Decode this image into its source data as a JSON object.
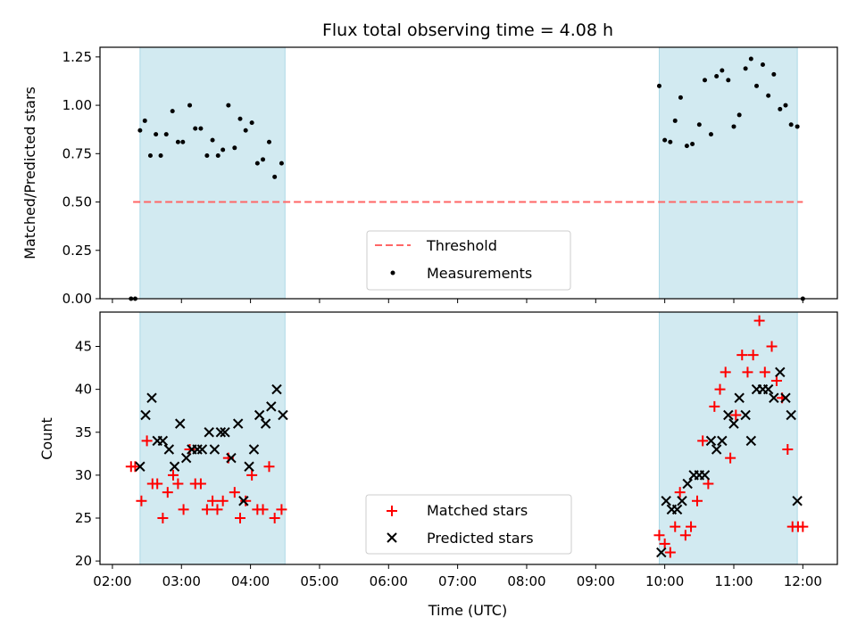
{
  "chart_data": {
    "type": "scatter",
    "title": "Flux total observing time = 4.08 h",
    "xlabel": "Time (UTC)",
    "x_ticks": [
      "02:00",
      "03:00",
      "04:00",
      "05:00",
      "06:00",
      "07:00",
      "08:00",
      "09:00",
      "10:00",
      "11:00",
      "12:00"
    ],
    "xlim_hours": [
      1.82,
      12.5
    ],
    "shaded_intervals_hours": [
      [
        2.4,
        4.5
      ],
      [
        9.92,
        11.92
      ]
    ],
    "shade_color": "#add8e6",
    "top_panel": {
      "ylabel": "Matched/Predicted stars",
      "ylim": [
        0,
        1.3
      ],
      "y_ticks": [
        "0.00",
        "0.25",
        "0.50",
        "0.75",
        "1.00",
        "1.25"
      ],
      "threshold": {
        "name": "Threshold",
        "value": 0.5,
        "x_range_hours": [
          2.3,
          12.0
        ],
        "color": "#ff6666"
      },
      "measurements": {
        "name": "Measurements",
        "color": "#000000",
        "points": [
          [
            2.27,
            0.0
          ],
          [
            2.33,
            0.0
          ],
          [
            2.4,
            0.87
          ],
          [
            2.47,
            0.92
          ],
          [
            2.55,
            0.74
          ],
          [
            2.63,
            0.85
          ],
          [
            2.7,
            0.74
          ],
          [
            2.78,
            0.85
          ],
          [
            2.87,
            0.97
          ],
          [
            2.95,
            0.81
          ],
          [
            3.02,
            0.81
          ],
          [
            3.12,
            1.0
          ],
          [
            3.2,
            0.88
          ],
          [
            3.28,
            0.88
          ],
          [
            3.37,
            0.74
          ],
          [
            3.45,
            0.82
          ],
          [
            3.53,
            0.74
          ],
          [
            3.6,
            0.77
          ],
          [
            3.68,
            1.0
          ],
          [
            3.77,
            0.78
          ],
          [
            3.85,
            0.93
          ],
          [
            3.93,
            0.87
          ],
          [
            4.02,
            0.91
          ],
          [
            4.1,
            0.7
          ],
          [
            4.18,
            0.72
          ],
          [
            4.27,
            0.81
          ],
          [
            4.35,
            0.63
          ],
          [
            4.45,
            0.7
          ],
          [
            9.92,
            1.1
          ],
          [
            10.0,
            0.82
          ],
          [
            10.08,
            0.81
          ],
          [
            10.15,
            0.92
          ],
          [
            10.23,
            1.04
          ],
          [
            10.32,
            0.79
          ],
          [
            10.4,
            0.8
          ],
          [
            10.5,
            0.9
          ],
          [
            10.58,
            1.13
          ],
          [
            10.67,
            0.85
          ],
          [
            10.75,
            1.15
          ],
          [
            10.83,
            1.18
          ],
          [
            10.92,
            1.13
          ],
          [
            11.0,
            0.89
          ],
          [
            11.08,
            0.95
          ],
          [
            11.17,
            1.19
          ],
          [
            11.25,
            1.24
          ],
          [
            11.33,
            1.1
          ],
          [
            11.42,
            1.21
          ],
          [
            11.5,
            1.05
          ],
          [
            11.58,
            1.16
          ],
          [
            11.67,
            0.98
          ],
          [
            11.75,
            1.0
          ],
          [
            11.83,
            0.9
          ],
          [
            11.92,
            0.89
          ],
          [
            12.0,
            0.0
          ]
        ]
      }
    },
    "bottom_panel": {
      "ylabel": "Count",
      "ylim": [
        19.6,
        49
      ],
      "y_ticks": [
        "20",
        "25",
        "30",
        "35",
        "40",
        "45"
      ],
      "series": [
        {
          "name": "Matched stars",
          "marker": "+",
          "color": "#ff0000",
          "points": [
            [
              2.27,
              31
            ],
            [
              2.33,
              31
            ],
            [
              2.42,
              27
            ],
            [
              2.5,
              34
            ],
            [
              2.58,
              29
            ],
            [
              2.65,
              29
            ],
            [
              2.73,
              25
            ],
            [
              2.8,
              28
            ],
            [
              2.88,
              30
            ],
            [
              2.95,
              29
            ],
            [
              3.03,
              26
            ],
            [
              3.12,
              33
            ],
            [
              3.2,
              29
            ],
            [
              3.28,
              29
            ],
            [
              3.37,
              26
            ],
            [
              3.45,
              27
            ],
            [
              3.52,
              26
            ],
            [
              3.6,
              27
            ],
            [
              3.68,
              32
            ],
            [
              3.77,
              28
            ],
            [
              3.85,
              25
            ],
            [
              3.93,
              27
            ],
            [
              4.02,
              30
            ],
            [
              4.1,
              26
            ],
            [
              4.18,
              26
            ],
            [
              4.27,
              31
            ],
            [
              4.35,
              25
            ],
            [
              4.45,
              26
            ],
            [
              9.92,
              23
            ],
            [
              10.0,
              22
            ],
            [
              10.08,
              21
            ],
            [
              10.15,
              24
            ],
            [
              10.22,
              28
            ],
            [
              10.3,
              23
            ],
            [
              10.38,
              24
            ],
            [
              10.47,
              27
            ],
            [
              10.55,
              34
            ],
            [
              10.63,
              29
            ],
            [
              10.72,
              38
            ],
            [
              10.8,
              40
            ],
            [
              10.88,
              42
            ],
            [
              10.95,
              32
            ],
            [
              11.03,
              37
            ],
            [
              11.12,
              44
            ],
            [
              11.2,
              42
            ],
            [
              11.28,
              44
            ],
            [
              11.37,
              48
            ],
            [
              11.45,
              42
            ],
            [
              11.55,
              45
            ],
            [
              11.62,
              41
            ],
            [
              11.7,
              39
            ],
            [
              11.78,
              33
            ],
            [
              11.85,
              24
            ],
            [
              11.93,
              24
            ],
            [
              12.0,
              24
            ]
          ]
        },
        {
          "name": "Predicted stars",
          "marker": "x",
          "color": "#000000",
          "points": [
            [
              2.4,
              31
            ],
            [
              2.48,
              37
            ],
            [
              2.57,
              39
            ],
            [
              2.65,
              34
            ],
            [
              2.73,
              34
            ],
            [
              2.82,
              33
            ],
            [
              2.9,
              31
            ],
            [
              2.98,
              36
            ],
            [
              3.07,
              32
            ],
            [
              3.15,
              33
            ],
            [
              3.23,
              33
            ],
            [
              3.3,
              33
            ],
            [
              3.4,
              35
            ],
            [
              3.48,
              33
            ],
            [
              3.57,
              35
            ],
            [
              3.63,
              35
            ],
            [
              3.72,
              32
            ],
            [
              3.82,
              36
            ],
            [
              3.9,
              27
            ],
            [
              3.98,
              31
            ],
            [
              4.05,
              33
            ],
            [
              4.13,
              37
            ],
            [
              4.22,
              36
            ],
            [
              4.3,
              38
            ],
            [
              4.38,
              40
            ],
            [
              4.47,
              37
            ],
            [
              9.95,
              21
            ],
            [
              10.02,
              27
            ],
            [
              10.1,
              26
            ],
            [
              10.18,
              26
            ],
            [
              10.25,
              27
            ],
            [
              10.33,
              29
            ],
            [
              10.42,
              30
            ],
            [
              10.5,
              30
            ],
            [
              10.58,
              30
            ],
            [
              10.67,
              34
            ],
            [
              10.75,
              33
            ],
            [
              10.83,
              34
            ],
            [
              10.92,
              37
            ],
            [
              11.0,
              36
            ],
            [
              11.08,
              39
            ],
            [
              11.17,
              37
            ],
            [
              11.25,
              34
            ],
            [
              11.33,
              40
            ],
            [
              11.42,
              40
            ],
            [
              11.5,
              40
            ],
            [
              11.58,
              39
            ],
            [
              11.67,
              42
            ],
            [
              11.75,
              39
            ],
            [
              11.83,
              37
            ],
            [
              11.92,
              27
            ]
          ]
        }
      ]
    }
  }
}
